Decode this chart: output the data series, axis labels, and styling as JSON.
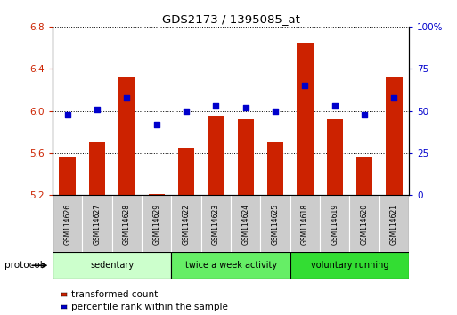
{
  "title": "GDS2173 / 1395085_at",
  "samples": [
    "GSM114626",
    "GSM114627",
    "GSM114628",
    "GSM114629",
    "GSM114622",
    "GSM114623",
    "GSM114624",
    "GSM114625",
    "GSM114618",
    "GSM114619",
    "GSM114620",
    "GSM114621"
  ],
  "transformed_count": [
    5.57,
    5.7,
    6.33,
    5.21,
    5.65,
    5.96,
    5.92,
    5.7,
    6.65,
    5.92,
    5.57,
    6.33
  ],
  "percentile_rank": [
    48,
    51,
    58,
    42,
    50,
    53,
    52,
    50,
    65,
    53,
    48,
    58
  ],
  "ylim_left": [
    5.2,
    6.8
  ],
  "ylim_right": [
    0,
    100
  ],
  "yticks_left": [
    5.2,
    5.6,
    6.0,
    6.4,
    6.8
  ],
  "yticks_right": [
    0,
    25,
    50,
    75,
    100
  ],
  "bar_color": "#CC2200",
  "dot_color": "#0000CC",
  "groups": [
    {
      "label": "sedentary",
      "start": 0,
      "end": 4,
      "color": "#ccffcc"
    },
    {
      "label": "twice a week activity",
      "start": 4,
      "end": 8,
      "color": "#66ee66"
    },
    {
      "label": "voluntary running",
      "start": 8,
      "end": 12,
      "color": "#33dd33"
    }
  ],
  "protocol_label": "protocol",
  "legend_items": [
    {
      "label": "transformed count",
      "color": "#CC2200"
    },
    {
      "label": "percentile rank within the sample",
      "color": "#0000CC"
    }
  ],
  "bar_width": 0.55,
  "base_value": 5.2,
  "tick_label_color_left": "#CC2200",
  "tick_label_color_right": "#0000CC",
  "sample_box_color": "#cccccc",
  "group_border_color": "#000000",
  "spine_color": "#000000"
}
